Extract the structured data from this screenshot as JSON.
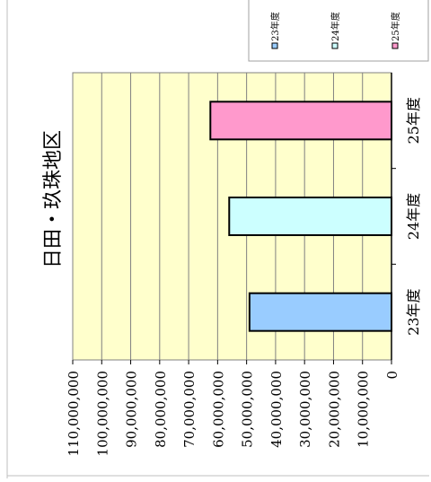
{
  "chart_data": {
    "type": "bar",
    "orientation": "horizontal",
    "rotated_view": "rotated 90 degrees counter-clockwise",
    "title": "日田・玖珠地区",
    "categories": [
      "23年度",
      "24年度",
      "25年度"
    ],
    "values": [
      49000000,
      56000000,
      62500000
    ],
    "series_colors": [
      "#99ccff",
      "#ccffff",
      "#ff99cc"
    ],
    "value_axis": {
      "min": 0,
      "max": 110000000,
      "step": 10000000,
      "tick_labels": [
        "0",
        "10,000,000",
        "20,000,000",
        "30,000,000",
        "40,000,000",
        "50,000,000",
        "60,000,000",
        "70,000,000",
        "80,000,000",
        "90,000,000",
        "100,000,000",
        "110,000,000"
      ]
    },
    "grid": true,
    "plot_background": "#ffffcc",
    "legend": {
      "position": "top-right",
      "entries": [
        "23年度",
        "24年度",
        "25年度"
      ]
    }
  }
}
